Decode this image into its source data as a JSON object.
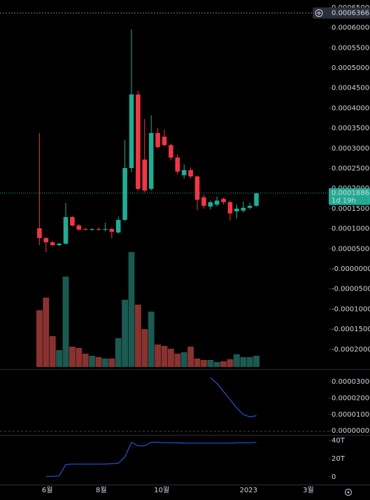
{
  "chart_data": [
    {
      "type": "candlestick",
      "open": [
        0.000101,
        7.67e-05,
        6.62e-05,
        5.92e-05,
        6.27e-05,
        0.000129,
        0.000108,
        9.93e-05,
        9.76e-05,
        9.93e-05,
        9.76e-05,
        9.93e-05,
        9.06e-05,
        0.000122,
        0.000251,
        0.000434,
        0.000272,
        0.000199,
        0.000338,
        0.000329,
        0.000308,
        0.000277,
        0.000233,
        0.000246,
        0.00023,
        0.000178,
        0.000155,
        0.00016,
        0.000174,
        0.000166,
        0.000143,
        0.000145,
        0.000152,
        0.000157
      ],
      "high": [
        0.000338,
        8e-05,
        7e-05,
        6.5e-05,
        0.000164,
        0.000132,
        0.000112,
        0.000102,
        0.000101,
        0.000103,
        0.000115,
        0.000102,
        0.00013,
        0.000321,
        0.000596,
        0.000443,
        0.000373,
        0.000382,
        0.00035,
        0.000347,
        0.000312,
        0.000285,
        0.00026,
        0.000252,
        0.000232,
        0.000185,
        0.00017,
        0.00018,
        0.000178,
        0.00017,
        0.00016,
        0.000168,
        0.000165,
        0.00019
      ],
      "low": [
        5.92e-05,
        4.18e-05,
        5.58e-05,
        5.6e-05,
        6e-05,
        0.000105,
        9.5e-05,
        9.6e-05,
        9.5e-05,
        9.5e-05,
        9.3e-05,
        7.67e-05,
        8.8e-05,
        0.000118,
        0.00024,
        0.000195,
        0.00019,
        0.000195,
        0.0003,
        0.000305,
        0.00027,
        0.000235,
        0.000225,
        0.000225,
        0.000146,
        0.00015,
        0.000148,
        0.000155,
        0.00016,
        0.00012,
        0.000125,
        0.00014,
        0.000148,
        0.000155
      ],
      "close": [
        7.67e-05,
        6.62e-05,
        5.92e-05,
        6.27e-05,
        0.000129,
        0.000108,
        9.76e-05,
        9.76e-05,
        9.93e-05,
        9.76e-05,
        9.93e-05,
        9.23e-05,
        0.000122,
        0.000251,
        0.000434,
        0.000199,
        0.000195,
        0.000338,
        0.000303,
        0.000308,
        0.000277,
        0.000242,
        0.000246,
        0.00023,
        0.000172,
        0.000157,
        0.000166,
        0.00017,
        0.000166,
        0.000138,
        0.00015,
        0.000152,
        0.000157,
        0.000188
      ],
      "volume": [
        81,
        99,
        44,
        24,
        129,
        29,
        27,
        19,
        16,
        14,
        12,
        12,
        41,
        96,
        164,
        89,
        54,
        79,
        32,
        30,
        26,
        19,
        21,
        29,
        12,
        10,
        10,
        7,
        8,
        11,
        18,
        14,
        14,
        16
      ],
      "up_color": "#22ab94",
      "down_color": "#f23645",
      "volume_up_color": "#1b5a51",
      "volume_down_color": "#8a3230",
      "xlim": [
        -6,
        44
      ],
      "xticks": [
        {
          "value": 1.2,
          "label": "6월"
        },
        {
          "value": 9.4,
          "label": "8월"
        },
        {
          "value": 18.6,
          "label": "10월"
        },
        {
          "value": 31.8,
          "label": "2023"
        },
        {
          "value": 40.9,
          "label": "3월"
        }
      ],
      "ylim": [
        -0.0002474,
        0.000669
      ],
      "yticks": [
        {
          "value": 0.00065,
          "label": "0.00065000"
        },
        {
          "value": 0.0006,
          "label": "0.00060000"
        },
        {
          "value": 0.00055,
          "label": "0.00055000"
        },
        {
          "value": 0.0005,
          "label": "0.00050000"
        },
        {
          "value": 0.00045,
          "label": "0.00045000"
        },
        {
          "value": 0.0004,
          "label": "0.00040000"
        },
        {
          "value": 0.00035,
          "label": "0.00035000"
        },
        {
          "value": 0.0003,
          "label": "0.00030000"
        },
        {
          "value": 0.00025,
          "label": "0.00025000"
        },
        {
          "value": 0.0002,
          "label": "0.00020000"
        },
        {
          "value": 0.00015,
          "label": "0.00015000"
        },
        {
          "value": 0.0001,
          "label": "0.00010000"
        },
        {
          "value": 5e-05,
          "label": "0.00005000"
        },
        {
          "value": 0,
          "label": "-0.00000000"
        },
        {
          "value": -5e-05,
          "label": "-0.00005000"
        },
        {
          "value": -0.0001,
          "label": "-0.00010000"
        },
        {
          "value": -0.00015,
          "label": "-0.00015000"
        },
        {
          "value": -0.0002,
          "label": "-0.00020000"
        }
      ],
      "price_line": {
        "value": 0.00063663,
        "label": "0.00063663"
      },
      "last_price": {
        "value": 0.00018867,
        "label": "0.00018867",
        "countdown": "1d 19h"
      }
    },
    {
      "type": "line",
      "color": "#2962ff",
      "values": [
        null,
        null,
        null,
        null,
        null,
        null,
        null,
        null,
        null,
        null,
        null,
        null,
        null,
        null,
        null,
        null,
        null,
        null,
        null,
        null,
        null,
        null,
        null,
        null,
        null,
        null,
        3.25e-05,
        2.9e-05,
        2.4e-05,
        1.9e-05,
        1.4e-05,
        1e-05,
        8.5e-06,
        9.2e-06
      ],
      "ylim": [
        -2.1e-06,
        3.56e-05
      ],
      "yticks": [
        {
          "value": 3e-05,
          "label": "0.00003000"
        },
        {
          "value": 2e-05,
          "label": "0.00002000"
        },
        {
          "value": 1e-05,
          "label": "0.00001000"
        },
        {
          "value": 0,
          "label": "0.00000000"
        }
      ]
    },
    {
      "type": "line",
      "color": "#2962ff",
      "values": [
        null,
        0.5,
        0.5,
        1,
        13.5,
        14,
        14,
        14,
        14,
        14,
        14,
        14.5,
        15,
        22,
        38,
        34,
        34,
        38,
        38,
        37.5,
        37.5,
        37.5,
        37,
        37,
        37,
        37,
        37,
        37,
        37,
        37,
        37.5,
        37.5,
        37.5,
        38
      ],
      "ylim": [
        -8.5,
        45.4
      ],
      "yticks": [
        {
          "value": 40,
          "label": "40T"
        },
        {
          "value": 20,
          "label": "20T"
        },
        0
      ]
    }
  ]
}
